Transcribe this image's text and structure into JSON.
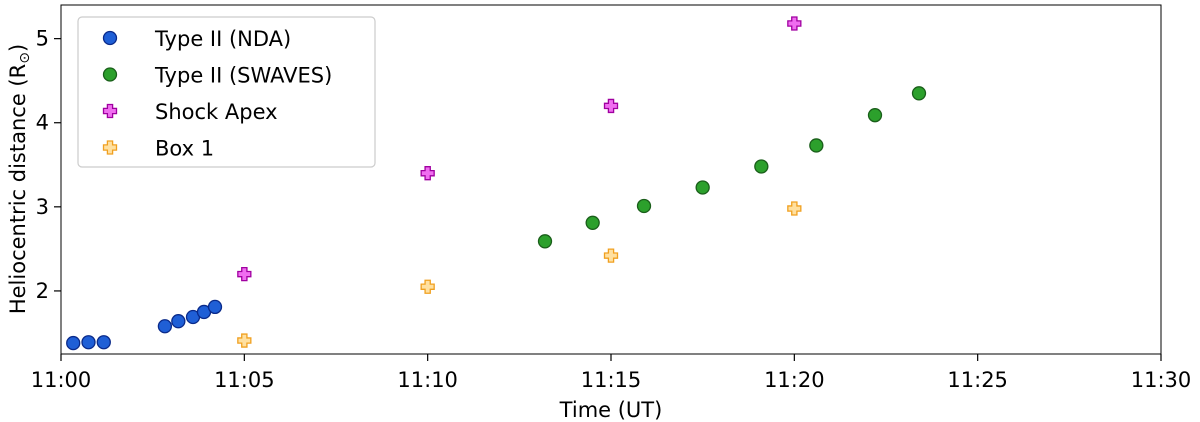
{
  "chart_data": {
    "type": "scatter",
    "title": "",
    "xlabel": "Time (UT)",
    "ylabel": "Heliocentric distance (R",
    "ylabel_sub": "⊙",
    "ylabel_close": ")",
    "xlim": [
      "11:00",
      "11:30"
    ],
    "ylim": [
      1.25,
      5.4
    ],
    "x_ticks": [
      "11:00",
      "11:05",
      "11:10",
      "11:15",
      "11:20",
      "11:25",
      "11:30"
    ],
    "y_ticks": [
      2,
      3,
      4,
      5
    ],
    "grid": false,
    "legend_position": "top-left",
    "series": [
      {
        "name": "Type II (NDA)",
        "marker": "circle",
        "color": "#1f5fd6",
        "edge": "#0a2a8a",
        "points": [
          {
            "x": "11:00:20",
            "y": 1.38
          },
          {
            "x": "11:00:45",
            "y": 1.39
          },
          {
            "x": "11:01:10",
            "y": 1.39
          },
          {
            "x": "11:02:50",
            "y": 1.58
          },
          {
            "x": "11:03:12",
            "y": 1.64
          },
          {
            "x": "11:03:36",
            "y": 1.69
          },
          {
            "x": "11:03:54",
            "y": 1.75
          },
          {
            "x": "11:04:12",
            "y": 1.81
          }
        ]
      },
      {
        "name": "Type II (SWAVES)",
        "marker": "circle",
        "color": "#2ca02c",
        "edge": "#1a5e1a",
        "points": [
          {
            "x": "11:13:12",
            "y": 2.59
          },
          {
            "x": "11:14:30",
            "y": 2.81
          },
          {
            "x": "11:15:54",
            "y": 3.01
          },
          {
            "x": "11:17:30",
            "y": 3.23
          },
          {
            "x": "11:19:06",
            "y": 3.48
          },
          {
            "x": "11:20:36",
            "y": 3.73
          },
          {
            "x": "11:22:12",
            "y": 4.09
          },
          {
            "x": "11:23:24",
            "y": 4.35
          }
        ]
      },
      {
        "name": "Shock Apex",
        "marker": "plus",
        "color": "#f06df0",
        "edge": "#a000a0",
        "points": [
          {
            "x": "11:05:00",
            "y": 2.2
          },
          {
            "x": "11:10:00",
            "y": 3.4
          },
          {
            "x": "11:15:00",
            "y": 4.2
          },
          {
            "x": "11:20:00",
            "y": 5.18
          }
        ]
      },
      {
        "name": "Box 1",
        "marker": "plus",
        "color": "#ffe0a0",
        "edge": "#f0a020",
        "points": [
          {
            "x": "11:05:00",
            "y": 1.41
          },
          {
            "x": "11:10:00",
            "y": 2.05
          },
          {
            "x": "11:15:00",
            "y": 2.42
          },
          {
            "x": "11:20:00",
            "y": 2.98
          }
        ]
      }
    ]
  }
}
